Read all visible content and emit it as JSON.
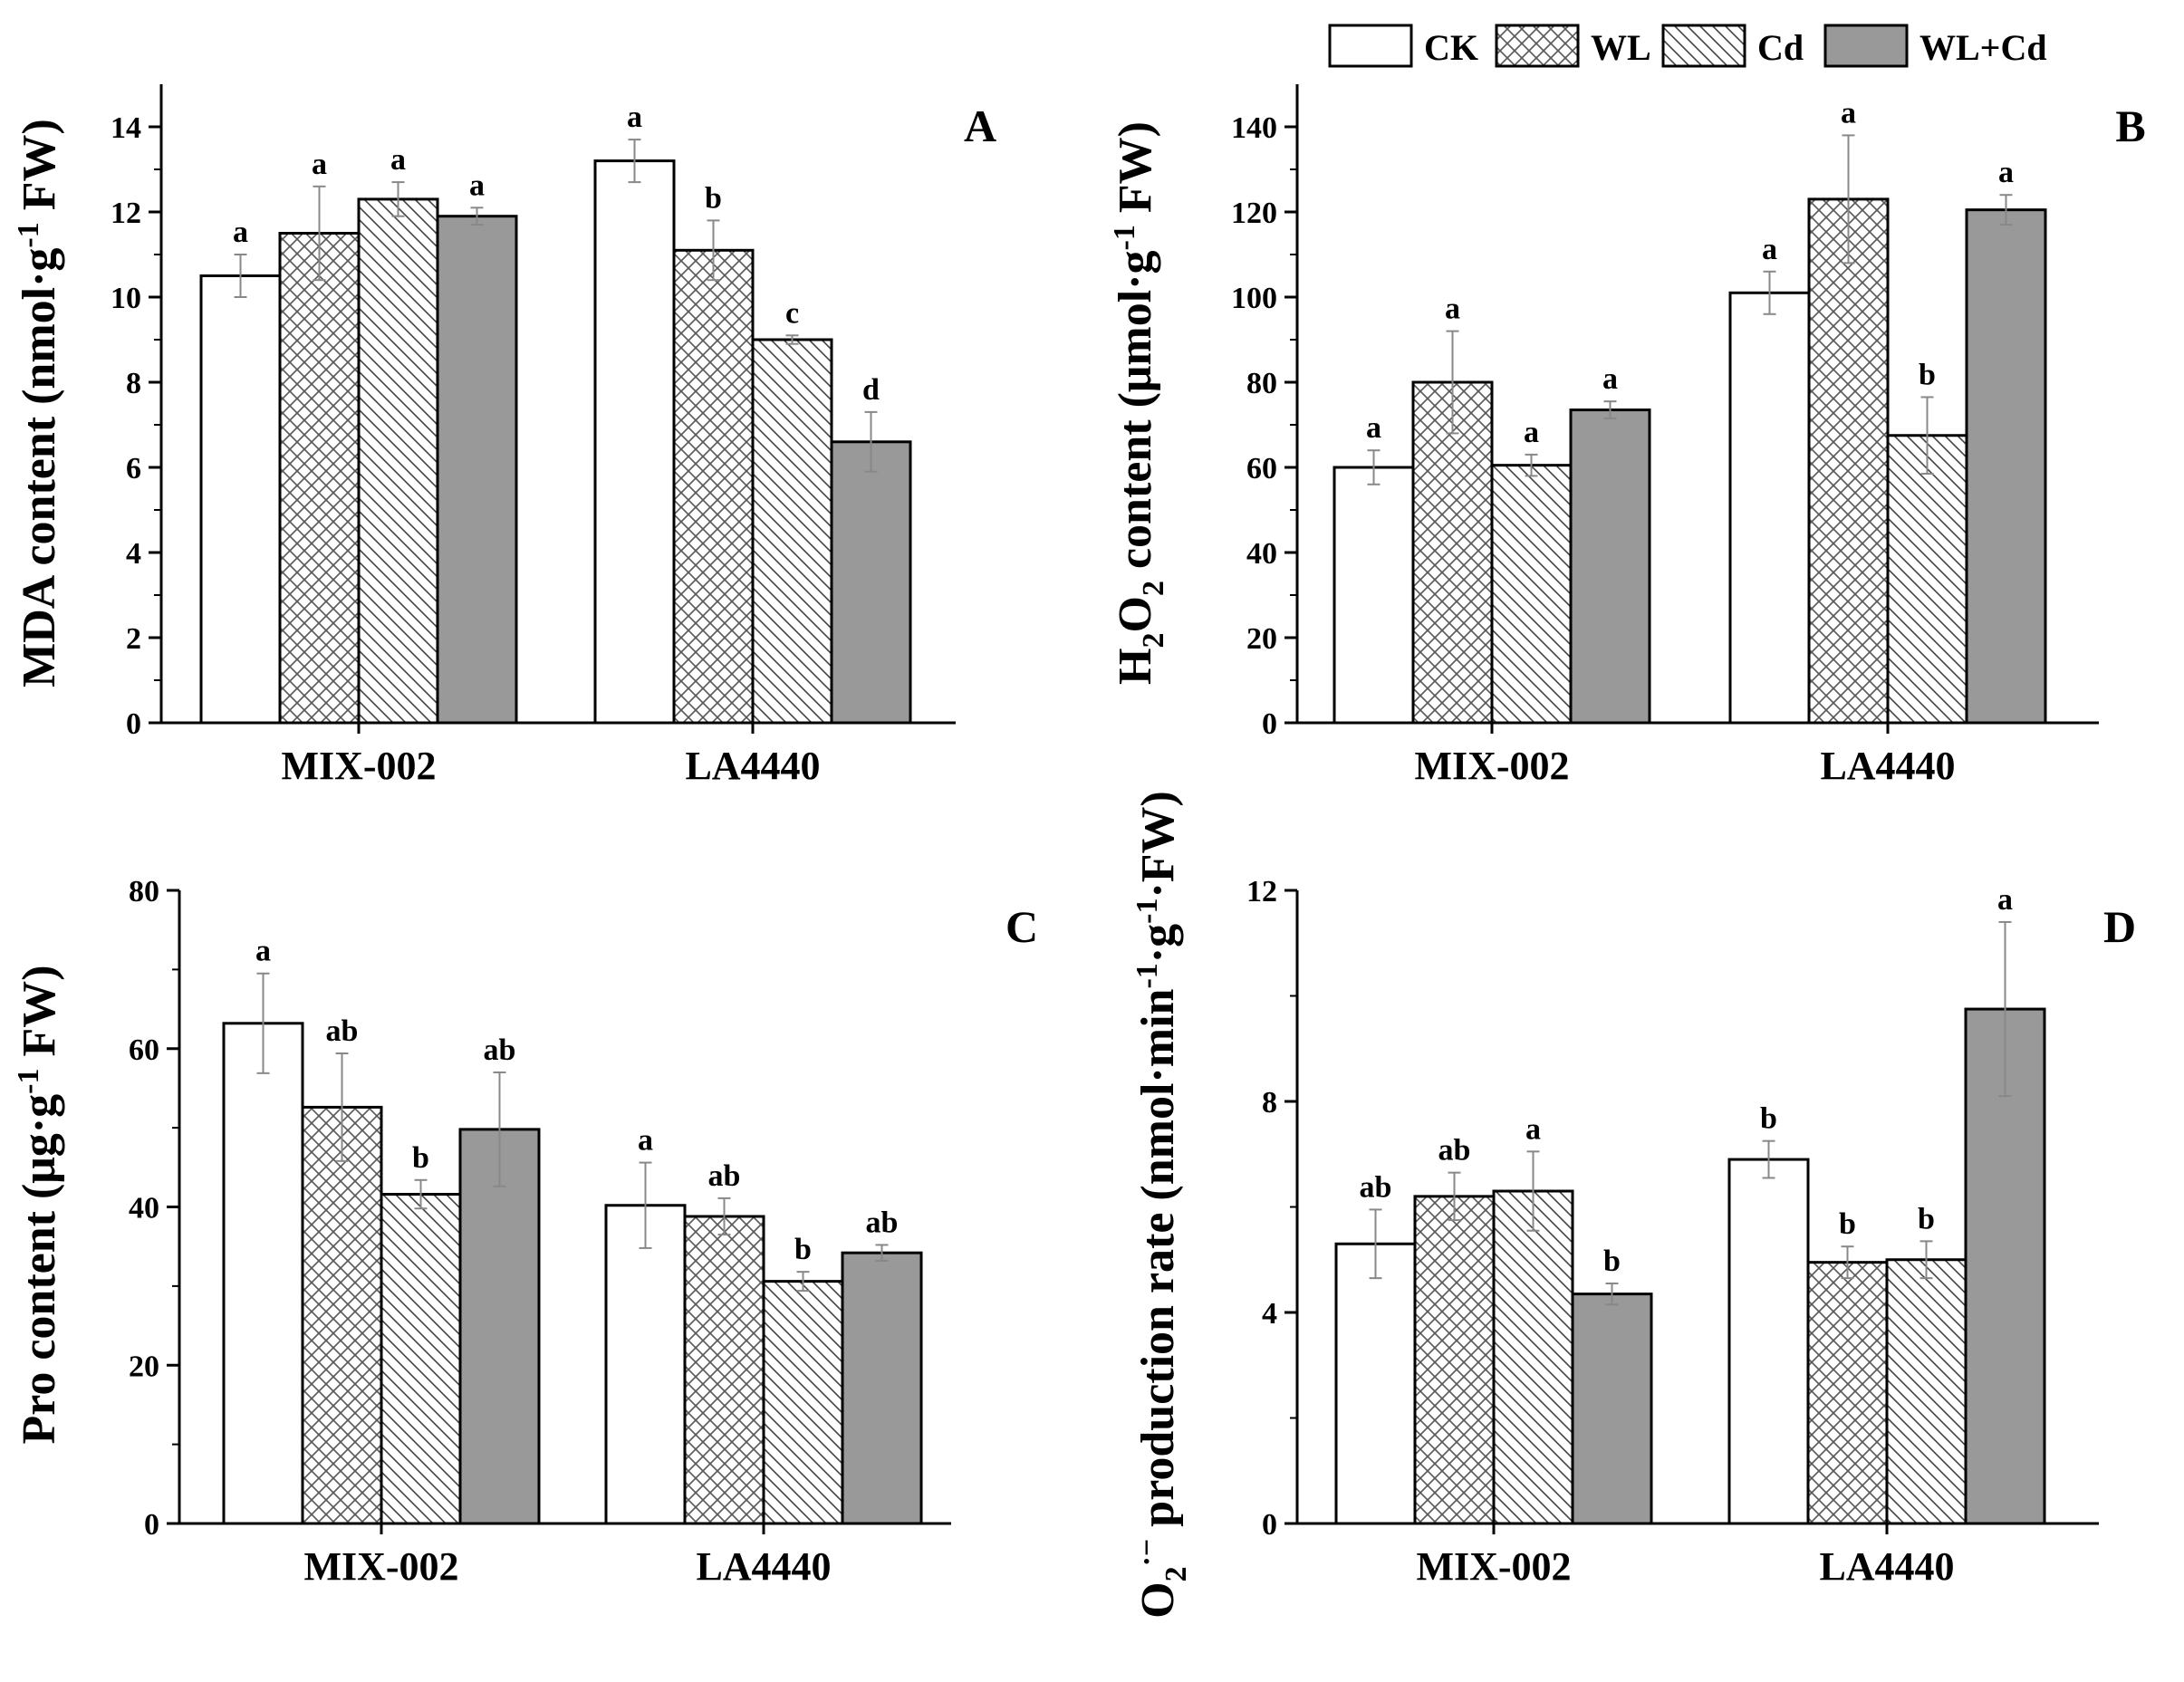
{
  "legend": [
    "CK",
    "WL",
    "Cd",
    "WL+Cd"
  ],
  "colors": {
    "CK": "#ffffff",
    "WL_line": "#555555",
    "Cd_line": "#444444",
    "WLCd": "#999999"
  },
  "chart_data": [
    {
      "panel": "A",
      "type": "bar",
      "ylabel_parts": [
        "MDA content (nmol·g",
        "-1",
        " FW)"
      ],
      "ylim": [
        0,
        15
      ],
      "yticks": [
        0,
        2,
        4,
        6,
        8,
        10,
        12,
        14
      ],
      "categories": [
        "MIX-002",
        "LA4440"
      ],
      "series": [
        {
          "name": "CK",
          "values": [
            10.5,
            13.2
          ],
          "errors": [
            0.5,
            0.5
          ],
          "letters": [
            "a",
            "a"
          ]
        },
        {
          "name": "WL",
          "values": [
            11.5,
            11.1
          ],
          "errors": [
            1.1,
            0.7
          ],
          "letters": [
            "a",
            "b"
          ]
        },
        {
          "name": "Cd",
          "values": [
            12.3,
            9.0
          ],
          "errors": [
            0.4,
            0.1
          ],
          "letters": [
            "a",
            "c"
          ]
        },
        {
          "name": "WL+Cd",
          "values": [
            11.9,
            6.6
          ],
          "errors": [
            0.2,
            0.7
          ],
          "letters": [
            "a",
            "d"
          ]
        }
      ]
    },
    {
      "panel": "B",
      "type": "bar",
      "ylabel_parts": [
        "H",
        "2",
        "O",
        "2",
        " content (μmol·g",
        "-1",
        " FW)"
      ],
      "ylim": [
        0,
        150
      ],
      "yticks": [
        0,
        20,
        40,
        60,
        80,
        100,
        120,
        140
      ],
      "categories": [
        "MIX-002",
        "LA4440"
      ],
      "series": [
        {
          "name": "CK",
          "values": [
            60,
            101
          ],
          "errors": [
            4,
            5
          ],
          "letters": [
            "a",
            "a"
          ]
        },
        {
          "name": "WL",
          "values": [
            80,
            123
          ],
          "errors": [
            12,
            15
          ],
          "letters": [
            "a",
            "a"
          ]
        },
        {
          "name": "Cd",
          "values": [
            60.5,
            67.5
          ],
          "errors": [
            2.5,
            9
          ],
          "letters": [
            "a",
            "b"
          ]
        },
        {
          "name": "WL+Cd",
          "values": [
            73.5,
            120.5
          ],
          "errors": [
            2,
            3.5
          ],
          "letters": [
            "a",
            "a"
          ]
        }
      ]
    },
    {
      "panel": "C",
      "type": "bar",
      "ylabel_parts": [
        "Pro content (μg·g",
        "-1",
        " FW)"
      ],
      "ylim": [
        0,
        80
      ],
      "yticks": [
        0,
        20,
        40,
        60,
        80
      ],
      "categories": [
        "MIX-002",
        "LA4440"
      ],
      "series": [
        {
          "name": "CK",
          "values": [
            63.2,
            40.2
          ],
          "errors": [
            6.3,
            5.4
          ],
          "letters": [
            "a",
            "a"
          ]
        },
        {
          "name": "WL",
          "values": [
            52.6,
            38.8
          ],
          "errors": [
            6.8,
            2.3
          ],
          "letters": [
            "ab",
            "ab"
          ]
        },
        {
          "name": "Cd",
          "values": [
            41.6,
            30.6
          ],
          "errors": [
            1.8,
            1.2
          ],
          "letters": [
            "b",
            "b"
          ]
        },
        {
          "name": "WL+Cd",
          "values": [
            49.8,
            34.2
          ],
          "errors": [
            7.2,
            1.0
          ],
          "letters": [
            "ab",
            "ab"
          ]
        }
      ]
    },
    {
      "panel": "D",
      "type": "bar",
      "ylabel_parts": [
        "O",
        "2",
        "·−",
        " production rate (nmol·min",
        "-1",
        "·g",
        "-1",
        "·FW)"
      ],
      "ylim": [
        0,
        12
      ],
      "yticks": [
        0,
        4,
        8,
        12
      ],
      "categories": [
        "MIX-002",
        "LA4440"
      ],
      "series": [
        {
          "name": "CK",
          "values": [
            5.3,
            6.9
          ],
          "errors": [
            0.65,
            0.35
          ],
          "letters": [
            "ab",
            "b"
          ]
        },
        {
          "name": "WL",
          "values": [
            6.2,
            4.95
          ],
          "errors": [
            0.45,
            0.3
          ],
          "letters": [
            "ab",
            "b"
          ]
        },
        {
          "name": "Cd",
          "values": [
            6.3,
            5.0
          ],
          "errors": [
            0.75,
            0.35
          ],
          "letters": [
            "a",
            "b"
          ]
        },
        {
          "name": "WL+Cd",
          "values": [
            4.35,
            9.75
          ],
          "errors": [
            0.2,
            1.65
          ],
          "letters": [
            "b",
            "a"
          ]
        }
      ]
    }
  ]
}
